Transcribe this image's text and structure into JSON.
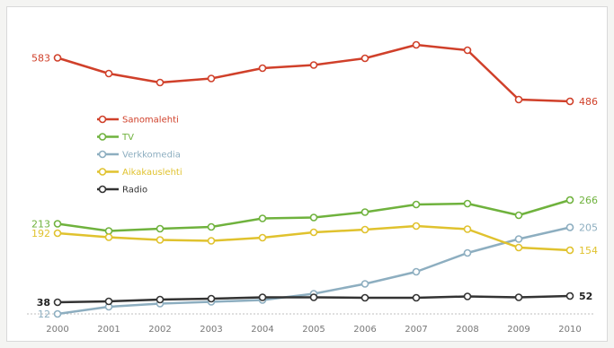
{
  "chart_data": {
    "type": "line",
    "categories": [
      "2000",
      "2001",
      "2002",
      "2003",
      "2004",
      "2005",
      "2006",
      "2007",
      "2008",
      "2009",
      "2010"
    ],
    "series": [
      {
        "name": "Sanomalehti",
        "color": "#d0402a",
        "values": [
          583,
          548,
          528,
          537,
          560,
          567,
          582,
          612,
          600,
          490,
          486
        ],
        "start_label": "583",
        "end_label": "486"
      },
      {
        "name": "TV",
        "color": "#6fb23d",
        "values": [
          213,
          197,
          202,
          206,
          225,
          227,
          239,
          256,
          258,
          232,
          266
        ],
        "start_label": "213",
        "end_label": "266"
      },
      {
        "name": "Verkkomedia",
        "color": "#8daec0",
        "values": [
          12,
          28,
          35,
          39,
          43,
          57,
          79,
          106,
          148,
          179,
          205
        ],
        "start_label": "12",
        "end_label": "205"
      },
      {
        "name": "Aikakauslehti",
        "color": "#e0c22e",
        "values": [
          192,
          183,
          177,
          175,
          182,
          194,
          200,
          208,
          201,
          160,
          154
        ],
        "start_label": "192",
        "end_label": "154"
      },
      {
        "name": "Radio",
        "color": "#333333",
        "values": [
          38,
          40,
          44,
          46,
          49,
          49,
          48,
          48,
          51,
          49,
          52
        ],
        "start_label": "38",
        "end_label": "52"
      }
    ],
    "legend_position": "upper-left",
    "grid": false
  }
}
